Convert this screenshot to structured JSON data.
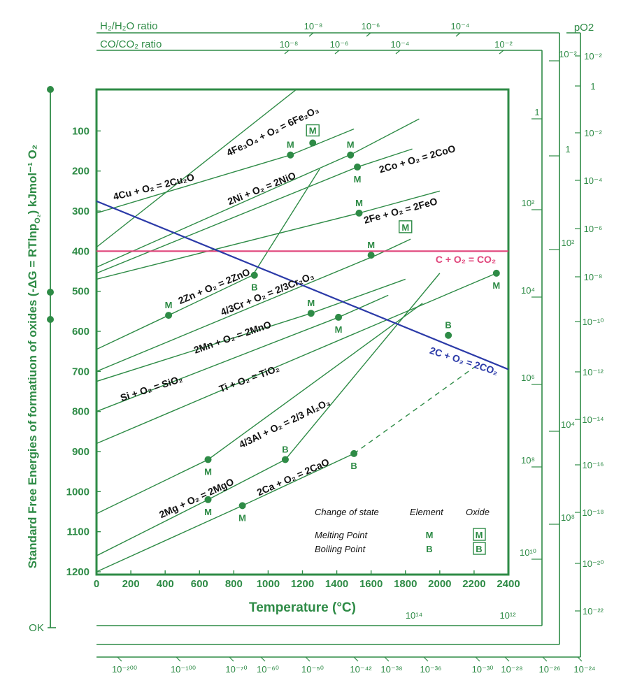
{
  "colors": {
    "green": "#2e8b46",
    "blue": "#2b3aa8",
    "pink": "#e0457b",
    "text": "#111111"
  },
  "chart_data": {
    "type": "line",
    "xlabel": "Temperature (°C)",
    "ylabel": "Standard Free Energies of formatiuon of oxides (-ΔG = RTlnp",
    "ylabel_sub": "O₂",
    "ylabel_end": ") kJmol⁻¹ O₂",
    "xlim": [
      0,
      2400
    ],
    "ylim": [
      0,
      1200
    ],
    "x_ticks": [
      "0",
      "200",
      "400",
      "600",
      "800",
      "1000",
      "1200",
      "1400",
      "1600",
      "1800",
      "2000",
      "2200",
      "2400"
    ],
    "y_ticks": [
      "100",
      "200",
      "300",
      "400",
      "500",
      "600",
      "700",
      "800",
      "900",
      "1000",
      "1100",
      "1200"
    ],
    "ok_label": "OK",
    "top_scales": {
      "h2_label": "H₂/H₂O ratio",
      "co_label": "CO/CO₂ ratio",
      "po2_label": "pO2",
      "h2_ticks": [
        "10⁻⁸",
        "10⁻⁶",
        "10⁻⁴"
      ],
      "co_ticks": [
        "10⁻⁸",
        "10⁻⁶",
        "10⁻⁴",
        "10⁻²"
      ]
    },
    "right_scales": {
      "h2_ticks": [
        "1",
        "10²",
        "10⁴",
        "10⁶",
        "10⁸",
        "10¹⁰"
      ],
      "co_ticks": [
        "10⁻²",
        "1",
        "10²",
        "10⁴",
        "10⁸"
      ],
      "po2_ticks": [
        "10⁻²",
        "1",
        "10⁻²",
        "10⁻⁴",
        "10⁻⁶",
        "10⁻⁸",
        "10⁻¹⁰",
        "10⁻¹²",
        "10⁻¹⁴",
        "10⁻¹⁶",
        "10⁻¹⁸",
        "10⁻²⁰",
        "10⁻²²"
      ]
    },
    "bottom_scales": {
      "h2_ticks": [
        "10¹⁴",
        "10¹²"
      ],
      "po2_ticks": [
        "10⁻²⁰⁰",
        "10⁻¹⁰⁰",
        "10⁻⁷⁰",
        "10⁻⁶⁰",
        "10⁻⁵⁰",
        "10⁻⁴²",
        "10⁻³⁸",
        "10⁻³⁶",
        "10⁻³⁰",
        "10⁻²⁸",
        "10⁻²⁶",
        "10⁻²⁴"
      ]
    },
    "series": [
      {
        "name": "4Fe₃O₄ + O₂ = 6Fe₂O₃",
        "x": [
          0,
          1450
        ],
        "y": [
          390,
          -100
        ],
        "color": "green"
      },
      {
        "name": "4Cu + O₂ = 2Cu₂O",
        "x": [
          0,
          1130,
          1500
        ],
        "y": [
          305,
          160,
          95
        ],
        "color": "green"
      },
      {
        "name": "2Ni + O₂ = 2NiO",
        "x": [
          0,
          1500,
          1880
        ],
        "y": [
          440,
          155,
          70
        ],
        "color": "green"
      },
      {
        "name": "2Co + O₂ = 2CoO",
        "x": [
          0,
          1520,
          1840
        ],
        "y": [
          455,
          190,
          145
        ],
        "color": "green"
      },
      {
        "name": "2Fe + O₂ = 2FeO",
        "x": [
          0,
          1530,
          2000
        ],
        "y": [
          470,
          305,
          250
        ],
        "color": "green"
      },
      {
        "name": "2Zn + O₂ = 2ZnO",
        "x": [
          0,
          420,
          910,
          1300
        ],
        "y": [
          645,
          560,
          460,
          195
        ],
        "color": "green"
      },
      {
        "name": "4/3Cr + O₂ = 2/3Cr₂O₃",
        "x": [
          0,
          1630,
          1830
        ],
        "y": [
          700,
          410,
          370
        ],
        "color": "green"
      },
      {
        "name": "2Mn + O₂ = 2MnO",
        "x": [
          0,
          1250,
          1800
        ],
        "y": [
          725,
          555,
          470
        ],
        "color": "green"
      },
      {
        "name": "Si + O₂ = SiO₂",
        "x": [
          0,
          1410,
          1700
        ],
        "y": [
          800,
          565,
          510
        ],
        "color": "green"
      },
      {
        "name": "Ti + O₂ = TiO₂",
        "x": [
          0,
          2330
        ],
        "y": [
          880,
          455
        ],
        "color": "green"
      },
      {
        "name": "4/3Al + O₂ = 2/3 Al₂O₃",
        "x": [
          0,
          650,
          1900
        ],
        "y": [
          1055,
          920,
          530
        ],
        "color": "green"
      },
      {
        "name": "2Mg + O₂ = 2MgO",
        "x": [
          0,
          650,
          1100,
          2000
        ],
        "y": [
          1160,
          1020,
          920,
          455
        ],
        "color": "green"
      },
      {
        "name": "2Ca + O₂ = 2CaO",
        "x": [
          0,
          850,
          1500
        ],
        "y": [
          1200,
          1035,
          905
        ],
        "color": "green"
      },
      {
        "name": "2Ca + O₂ = 2CaO (dashed)",
        "x": [
          1500,
          2200
        ],
        "y": [
          905,
          690
        ],
        "color": "green",
        "dashed": true
      },
      {
        "name": "C + O₂ = CO₂",
        "x": [
          0,
          2400
        ],
        "y": [
          400,
          400
        ],
        "color": "pink"
      },
      {
        "name": "2C + O₂ = 2CO₂",
        "x": [
          -30,
          2400
        ],
        "y": [
          270,
          695
        ],
        "color": "blue"
      }
    ],
    "points": [
      {
        "x": 1130,
        "y": 160,
        "label": "M",
        "pos": "above"
      },
      {
        "x": 1260,
        "y": 130,
        "label": "M",
        "pos": "boxabove"
      },
      {
        "x": 1480,
        "y": 160,
        "label": "M",
        "pos": "above"
      },
      {
        "x": 1520,
        "y": 190,
        "label": "M",
        "pos": "below"
      },
      {
        "x": 1530,
        "y": 305,
        "label": "M",
        "pos": "above"
      },
      {
        "x": 1600,
        "y": 410,
        "label": "M",
        "pos": "above"
      },
      {
        "x": 920,
        "y": 460,
        "label": "B",
        "pos": "below"
      },
      {
        "x": 420,
        "y": 560,
        "label": "M",
        "pos": "above"
      },
      {
        "x": 1250,
        "y": 555,
        "label": "M",
        "pos": "above"
      },
      {
        "x": 1410,
        "y": 565,
        "label": "M",
        "pos": "below"
      },
      {
        "x": 2050,
        "y": 610,
        "label": "B",
        "pos": "above"
      },
      {
        "x": 2330,
        "y": 455,
        "label": "M",
        "pos": "below"
      },
      {
        "x": 650,
        "y": 920,
        "label": "M",
        "pos": "below"
      },
      {
        "x": 1100,
        "y": 920,
        "label": "B",
        "pos": "above"
      },
      {
        "x": 650,
        "y": 1020,
        "label": "M",
        "pos": "below"
      },
      {
        "x": 850,
        "y": 1035,
        "label": "M",
        "pos": "below"
      },
      {
        "x": 1500,
        "y": 905,
        "label": "B",
        "pos": "below"
      }
    ],
    "boxed_marker": {
      "x": 1800,
      "y": 455,
      "label": "M"
    },
    "legend": {
      "header": "Change of state",
      "col_element": "Element",
      "col_oxide": "Oxide",
      "rows": [
        {
          "label": "Melting Point",
          "element": "M",
          "oxide": "M"
        },
        {
          "label": "Boiling Point",
          "element": "B",
          "oxide": "B"
        }
      ]
    }
  }
}
